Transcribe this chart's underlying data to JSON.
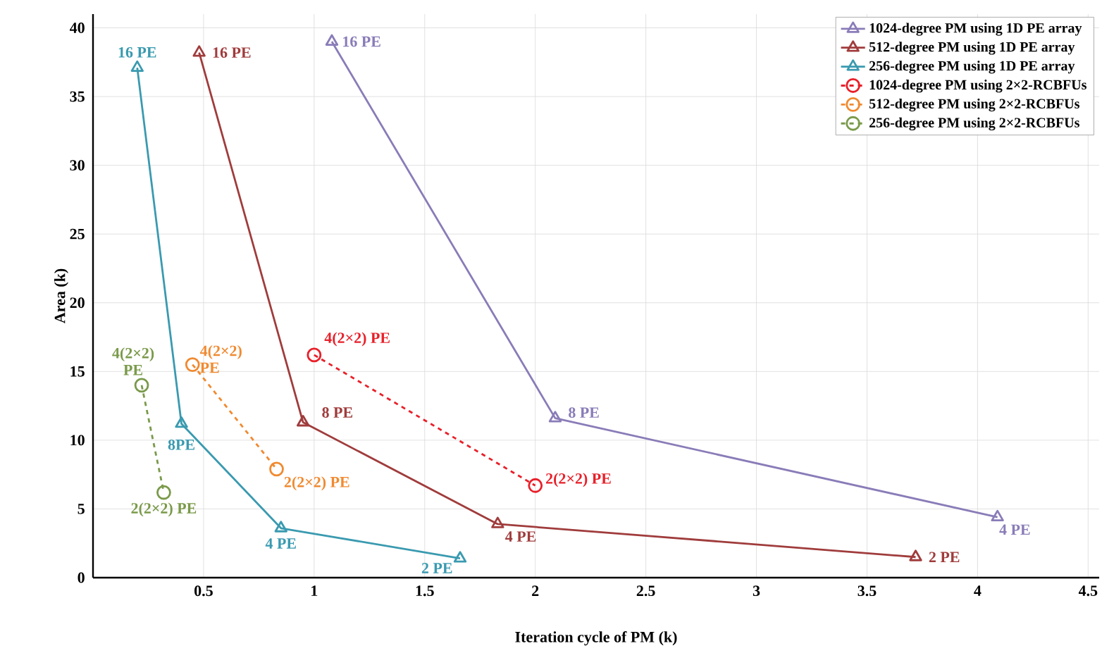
{
  "chart_data": {
    "type": "line",
    "xlabel": "Iteration  cycle of  PM (k)",
    "ylabel": "Area (k)",
    "xlim": [
      0,
      4.55
    ],
    "ylim": [
      0,
      41
    ],
    "xticks": [
      0.5,
      1,
      1.5,
      2,
      2.5,
      3,
      3.5,
      4,
      4.5
    ],
    "yticks": [
      0,
      5,
      10,
      15,
      20,
      25,
      30,
      35,
      40
    ],
    "grid": true,
    "legend": "top right",
    "series": [
      {
        "name": "1024-degree PM using 1D PE array",
        "color": "#8a7cb8",
        "marker": "triangle",
        "line_style": "solid",
        "x": [
          1.08,
          2.09,
          4.09
        ],
        "values": [
          39,
          11.6,
          4.4
        ]
      },
      {
        "name": "512-degree PM using 1D PE array",
        "color": "#a03c3c",
        "marker": "triangle",
        "line_style": "solid",
        "x": [
          0.48,
          0.95,
          1.83,
          3.72
        ],
        "values": [
          38.2,
          11.3,
          3.9,
          1.5
        ]
      },
      {
        "name": "256-degree PM using 1D PE array",
        "color": "#3a9ab0",
        "marker": "triangle",
        "line_style": "solid",
        "x": [
          0.2,
          0.4,
          0.85,
          1.66
        ],
        "values": [
          37.1,
          11.2,
          3.6,
          1.4
        ]
      },
      {
        "name": "1024-degree PM using 2×2-RCBFUs",
        "color": "#e8202a",
        "marker": "circle",
        "line_style": "dashed",
        "x": [
          1.0,
          2.0
        ],
        "values": [
          16.2,
          6.7
        ]
      },
      {
        "name": "512-degree PM using 2×2-RCBFUs",
        "color": "#f08a30",
        "marker": "circle",
        "line_style": "dashed",
        "x": [
          0.45,
          0.83
        ],
        "values": [
          15.5,
          7.9
        ]
      },
      {
        "name": "256-degree PM using 2×2-RCBFUs",
        "color": "#7a9a4a",
        "marker": "circle",
        "line_style": "dashed",
        "x": [
          0.22,
          0.32
        ],
        "values": [
          14.0,
          6.2
        ]
      }
    ],
    "annotations": [
      {
        "text": "16 PE",
        "x": 1.08,
        "y": 39
      },
      {
        "text": "8 PE",
        "x": 2.09,
        "y": 11.6
      },
      {
        "text": "4 PE",
        "x": 4.09,
        "y": 4.4
      },
      {
        "text": "16 PE",
        "x": 0.48,
        "y": 38.2
      },
      {
        "text": "8 PE",
        "x": 0.95,
        "y": 11.3
      },
      {
        "text": "4 PE",
        "x": 1.83,
        "y": 3.9
      },
      {
        "text": "2 PE",
        "x": 3.72,
        "y": 1.5
      },
      {
        "text": "16 PE",
        "x": 0.2,
        "y": 37.1
      },
      {
        "text": "8PE",
        "x": 0.4,
        "y": 11.2
      },
      {
        "text": "4 PE",
        "x": 0.85,
        "y": 3.6
      },
      {
        "text": "2 PE",
        "x": 1.66,
        "y": 1.4
      },
      {
        "text": "4(2×2) PE",
        "x": 1.0,
        "y": 16.2
      },
      {
        "text": "2(2×2) PE",
        "x": 2.0,
        "y": 6.7
      },
      {
        "text": "4(2×2) PE",
        "x": 0.45,
        "y": 15.5
      },
      {
        "text": "2(2×2) PE",
        "x": 0.83,
        "y": 7.9
      },
      {
        "text": "4(2×2) PE",
        "x": 0.22,
        "y": 14.0
      },
      {
        "text": "2(2×2) PE",
        "x": 0.32,
        "y": 6.2
      }
    ]
  }
}
